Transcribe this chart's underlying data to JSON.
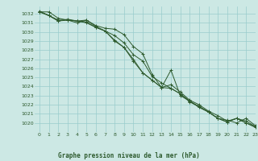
{
  "title": "Graphe pression niveau de la mer (hPa)",
  "bg_color": "#cce8e4",
  "grid_color": "#99cccc",
  "line_color": "#2d5a2d",
  "xlim": [
    -0.5,
    23
  ],
  "ylim": [
    1019.0,
    1032.8
  ],
  "yticks": [
    1020,
    1021,
    1022,
    1023,
    1024,
    1025,
    1026,
    1027,
    1028,
    1029,
    1030,
    1031,
    1032
  ],
  "xticks": [
    0,
    1,
    2,
    3,
    4,
    5,
    6,
    7,
    8,
    9,
    10,
    11,
    12,
    13,
    14,
    15,
    16,
    17,
    18,
    19,
    20,
    21,
    22,
    23
  ],
  "series": [
    [
      1032.2,
      1032.2,
      1031.5,
      1031.3,
      1031.2,
      1031.3,
      1030.7,
      1030.4,
      1030.3,
      1029.7,
      1028.4,
      1027.6,
      1025.3,
      1023.9,
      1024.2,
      1023.4,
      1022.5,
      1022.0,
      1021.3,
      1020.8,
      1020.2,
      1020.5,
      1020.2,
      1019.6
    ],
    [
      1032.2,
      1031.8,
      1031.3,
      1031.3,
      1031.0,
      1031.3,
      1030.6,
      1030.1,
      1029.1,
      1028.3,
      1027.0,
      1025.5,
      1024.7,
      1023.9,
      1023.8,
      1023.2,
      1022.3,
      1021.8,
      1021.2,
      1020.5,
      1020.1,
      1020.5,
      1020.0,
      1019.6
    ],
    [
      1032.2,
      1031.8,
      1031.2,
      1031.3,
      1031.2,
      1031.1,
      1030.5,
      1030.1,
      1029.0,
      1028.3,
      1026.8,
      1025.5,
      1024.7,
      1023.9,
      1025.8,
      1023.0,
      1022.4,
      1021.7,
      1021.2,
      1020.5,
      1020.1,
      1020.5,
      1020.0,
      1019.5
    ],
    [
      1032.3,
      1031.8,
      1031.2,
      1031.4,
      1031.2,
      1031.0,
      1030.5,
      1030.1,
      1029.6,
      1028.8,
      1027.5,
      1026.8,
      1025.1,
      1024.4,
      1023.8,
      1023.2,
      1022.4,
      1021.8,
      1021.2,
      1020.5,
      1020.3,
      1020.0,
      1020.5,
      1019.7
    ]
  ]
}
